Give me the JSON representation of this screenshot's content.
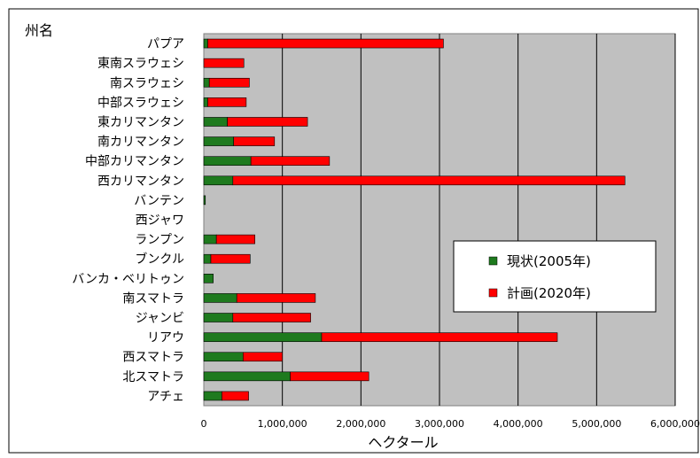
{
  "chart_data": {
    "type": "bar",
    "orientation": "horizontal",
    "stacked": true,
    "y_axis_title": "州名",
    "xlabel": "ヘクタール",
    "categories": [
      "パプア",
      "東南スラウェシ",
      "南スラウェシ",
      "中部スラウェシ",
      "東カリマンタン",
      "南カリマンタン",
      "中部カリマンタン",
      "西カリマンタン",
      "バンテン",
      "西ジャワ",
      "ランプン",
      "ブンクル",
      "バンカ・ベリトゥン",
      "南スマトラ",
      "ジャンビ",
      "リアウ",
      "西スマトラ",
      "北スマトラ",
      "アチェ"
    ],
    "series": [
      {
        "name": "現状(2005年)",
        "color": "#1e7a1e",
        "values": [
          50000,
          0,
          70000,
          50000,
          300000,
          380000,
          600000,
          370000,
          20000,
          0,
          160000,
          90000,
          120000,
          420000,
          370000,
          1500000,
          500000,
          1100000,
          230000
        ]
      },
      {
        "name": "計画(2020年)",
        "color": "#ff0000",
        "values": [
          3000000,
          510000,
          510000,
          490000,
          1020000,
          520000,
          1000000,
          4990000,
          0,
          0,
          490000,
          500000,
          0,
          1000000,
          990000,
          3000000,
          500000,
          1000000,
          340000
        ]
      }
    ],
    "x_ticks": [
      "0",
      "1,000,000",
      "2,000,000",
      "3,000,000",
      "4,000,000",
      "5,000,000",
      "6,000,000"
    ],
    "xlim": [
      0,
      6000000
    ],
    "grid": true,
    "legend_position": "right-center"
  }
}
